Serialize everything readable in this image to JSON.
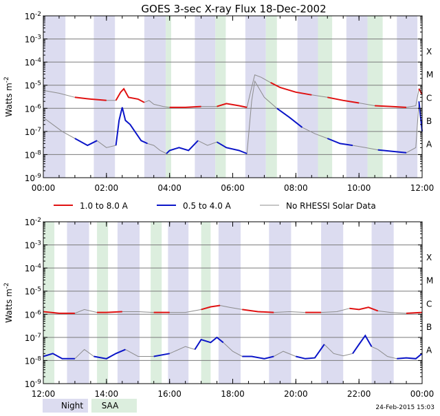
{
  "title": "GOES 3-sec X-ray Flux   18-Dec-2002",
  "footer_timestamp": "24-Feb-2015 15:03",
  "legend": {
    "long": "1.0 to 8.0 A",
    "short": "0.5 to 4.0 A",
    "nodata": "No RHESSI Solar Data",
    "night": "Night",
    "saa": "SAA"
  },
  "colors": {
    "long": "#e01010",
    "short": "#0a14c8",
    "nodata": "#8c8c8c",
    "night": "#dcdcf0",
    "saa": "#dceede",
    "grid": "#7a7a7a"
  },
  "chart_data": [
    {
      "type": "line",
      "panel": "top",
      "ylabel": "Watts m^-2",
      "yscale": "log",
      "ylim": [
        1e-09,
        0.01
      ],
      "xlim_hours": [
        0,
        12
      ],
      "x_tick_labels": [
        "00:00",
        "02:00",
        "04:00",
        "06:00",
        "08:00",
        "10:00",
        "12:00"
      ],
      "y_tick_labels": [
        "10^-9",
        "10^-8",
        "10^-7",
        "10^-6",
        "10^-5",
        "10^-4",
        "10^-3",
        "10^-2"
      ],
      "class_labels": [
        "A",
        "B",
        "C",
        "M",
        "X"
      ],
      "grid_y": true,
      "night_intervals_hours": [
        [
          0.0,
          0.7
        ],
        [
          1.6,
          2.27
        ],
        [
          3.2,
          3.88
        ],
        [
          4.8,
          5.45
        ],
        [
          6.4,
          7.05
        ],
        [
          8.05,
          8.7
        ],
        [
          9.6,
          10.27
        ],
        [
          11.2,
          11.85
        ]
      ],
      "saa_intervals_hours": [
        [
          3.88,
          4.05
        ],
        [
          5.45,
          5.78
        ],
        [
          7.05,
          7.4
        ],
        [
          8.7,
          9.15
        ],
        [
          10.27,
          10.75
        ]
      ],
      "series": [
        {
          "name": "1.0 to 8.0 A",
          "key": "long",
          "x_hours": [
            0,
            0.5,
            1.0,
            1.5,
            2.0,
            2.3,
            2.45,
            2.55,
            2.7,
            3.0,
            3.2,
            3.35,
            3.5,
            3.8,
            4.0,
            4.5,
            5.0,
            5.5,
            5.8,
            6.2,
            6.45,
            6.6,
            6.7,
            6.9,
            7.2,
            7.5,
            8.0,
            8.5,
            9.0,
            9.5,
            10.0,
            10.5,
            11.0,
            11.5,
            11.8,
            11.9,
            12.0
          ],
          "y": [
            6e-06,
            4.5e-06,
            3e-06,
            2.5e-06,
            2.2e-06,
            2.2e-06,
            5e-06,
            7e-06,
            3e-06,
            2.5e-06,
            1.8e-06,
            2.2e-06,
            1.5e-06,
            1.2e-06,
            1.1e-06,
            1.1e-06,
            1.2e-06,
            1.2e-06,
            1.6e-06,
            1.3e-06,
            1.1e-06,
            8e-06,
            2.8e-05,
            2.2e-05,
            1.3e-05,
            8e-06,
            5e-06,
            3.8e-06,
            3e-06,
            2.2e-06,
            1.7e-06,
            1.3e-06,
            1.2e-06,
            1.1e-06,
            1.3e-06,
            7e-06,
            4e-06
          ],
          "plotted_with_data_hours": [
            [
              0,
              3.5
            ],
            [
              3.5,
              4.8
            ],
            [
              5.5,
              6.3
            ]
          ]
        },
        {
          "name": "0.5 to 4.0 A",
          "key": "short",
          "x_hours": [
            0,
            0.3,
            0.6,
            1.0,
            1.4,
            1.7,
            2.0,
            2.3,
            2.4,
            2.5,
            2.6,
            2.75,
            2.9,
            3.1,
            3.3,
            3.5,
            3.7,
            3.9,
            4.0,
            4.3,
            4.6,
            4.9,
            5.2,
            5.5,
            5.8,
            6.2,
            6.45,
            6.6,
            6.7,
            7.0,
            7.4,
            7.8,
            8.2,
            8.6,
            9.0,
            9.4,
            9.8,
            10.2,
            10.6,
            11.0,
            11.5,
            11.8,
            11.9,
            12.0
          ],
          "y": [
            4e-07,
            2e-07,
            1e-07,
            5e-08,
            2.5e-08,
            4e-08,
            2e-08,
            2.5e-08,
            3e-07,
            1.1e-06,
            3e-07,
            2e-07,
            1e-07,
            4e-08,
            3e-08,
            2.5e-08,
            1.5e-08,
            1.1e-08,
            1.5e-08,
            2e-08,
            1.5e-08,
            4e-08,
            2.5e-08,
            3.5e-08,
            2e-08,
            1.5e-08,
            1.1e-08,
            2e-06,
            1.5e-05,
            3e-06,
            1e-06,
            4e-07,
            1.5e-07,
            8e-08,
            5e-08,
            3e-08,
            2.5e-08,
            2e-08,
            1.6e-08,
            1.4e-08,
            1.2e-08,
            2e-08,
            2e-06,
            1e-07
          ]
        }
      ]
    },
    {
      "type": "line",
      "panel": "bottom",
      "ylabel": "Watts m^-2",
      "yscale": "log",
      "ylim": [
        1e-09,
        0.01
      ],
      "xlim_hours": [
        12,
        24
      ],
      "x_tick_labels": [
        "12:00",
        "14:00",
        "16:00",
        "18:00",
        "20:00",
        "22:00",
        "00:00"
      ],
      "y_tick_labels": [
        "10^-9",
        "10^-8",
        "10^-7",
        "10^-6",
        "10^-5",
        "10^-4",
        "10^-3",
        "10^-2"
      ],
      "class_labels": [
        "A",
        "B",
        "C",
        "M",
        "X"
      ],
      "grid_y": true,
      "night_intervals_hours": [
        [
          12.75,
          13.45
        ],
        [
          14.35,
          15.05
        ],
        [
          15.95,
          16.6
        ],
        [
          17.55,
          18.25
        ],
        [
          19.15,
          19.85
        ],
        [
          20.8,
          21.5
        ],
        [
          22.4,
          23.1
        ],
        [
          24.0,
          24.1
        ]
      ],
      "saa_intervals_hours": [
        [
          12.0,
          12.35
        ],
        [
          13.7,
          14.05
        ],
        [
          15.4,
          15.75
        ],
        [
          17.0,
          17.3
        ]
      ],
      "series": [
        {
          "name": "1.0 to 8.0 A",
          "key": "long",
          "x_hours": [
            12,
            12.5,
            13.0,
            13.3,
            13.7,
            14.0,
            14.5,
            15.0,
            15.5,
            16.0,
            16.5,
            17.0,
            17.3,
            17.6,
            17.9,
            18.3,
            18.8,
            19.3,
            19.8,
            20.3,
            20.8,
            21.3,
            21.7,
            22.0,
            22.3,
            22.6,
            23.0,
            23.5,
            24.0
          ],
          "y": [
            1.3e-06,
            1.1e-06,
            1.1e-06,
            1.6e-06,
            1.2e-06,
            1.2e-06,
            1.3e-06,
            1.3e-06,
            1.2e-06,
            1.2e-06,
            1.2e-06,
            1.6e-06,
            2.1e-06,
            2.4e-06,
            2e-06,
            1.6e-06,
            1.3e-06,
            1.2e-06,
            1.3e-06,
            1.2e-06,
            1.2e-06,
            1.3e-06,
            1.8e-06,
            1.6e-06,
            2e-06,
            1.4e-06,
            1.2e-06,
            1.1e-06,
            1.2e-06
          ]
        },
        {
          "name": "0.5 to 4.0 A",
          "key": "short",
          "x_hours": [
            12,
            12.3,
            12.6,
            13.0,
            13.3,
            13.6,
            14.0,
            14.3,
            14.6,
            15.0,
            15.5,
            16.0,
            16.5,
            16.8,
            17.0,
            17.3,
            17.5,
            17.7,
            18.0,
            18.3,
            18.6,
            19.0,
            19.3,
            19.6,
            20.0,
            20.3,
            20.6,
            20.9,
            21.2,
            21.5,
            21.8,
            22.0,
            22.2,
            22.4,
            22.6,
            22.9,
            23.2,
            23.5,
            23.8,
            24.0
          ],
          "y": [
            1.5e-08,
            2e-08,
            1.2e-08,
            1.2e-08,
            3e-08,
            1.5e-08,
            1.2e-08,
            2e-08,
            3e-08,
            1.5e-08,
            1.5e-08,
            2e-08,
            4e-08,
            3e-08,
            8e-08,
            6e-08,
            1e-07,
            6e-08,
            2.5e-08,
            1.5e-08,
            1.5e-08,
            1.2e-08,
            1.5e-08,
            2.5e-08,
            1.5e-08,
            1.2e-08,
            1.3e-08,
            5e-08,
            2e-08,
            1.6e-08,
            2e-08,
            5e-08,
            1.2e-07,
            4e-08,
            3e-08,
            1.5e-08,
            1.2e-08,
            1.3e-08,
            1.2e-08,
            2e-08
          ]
        }
      ]
    }
  ]
}
